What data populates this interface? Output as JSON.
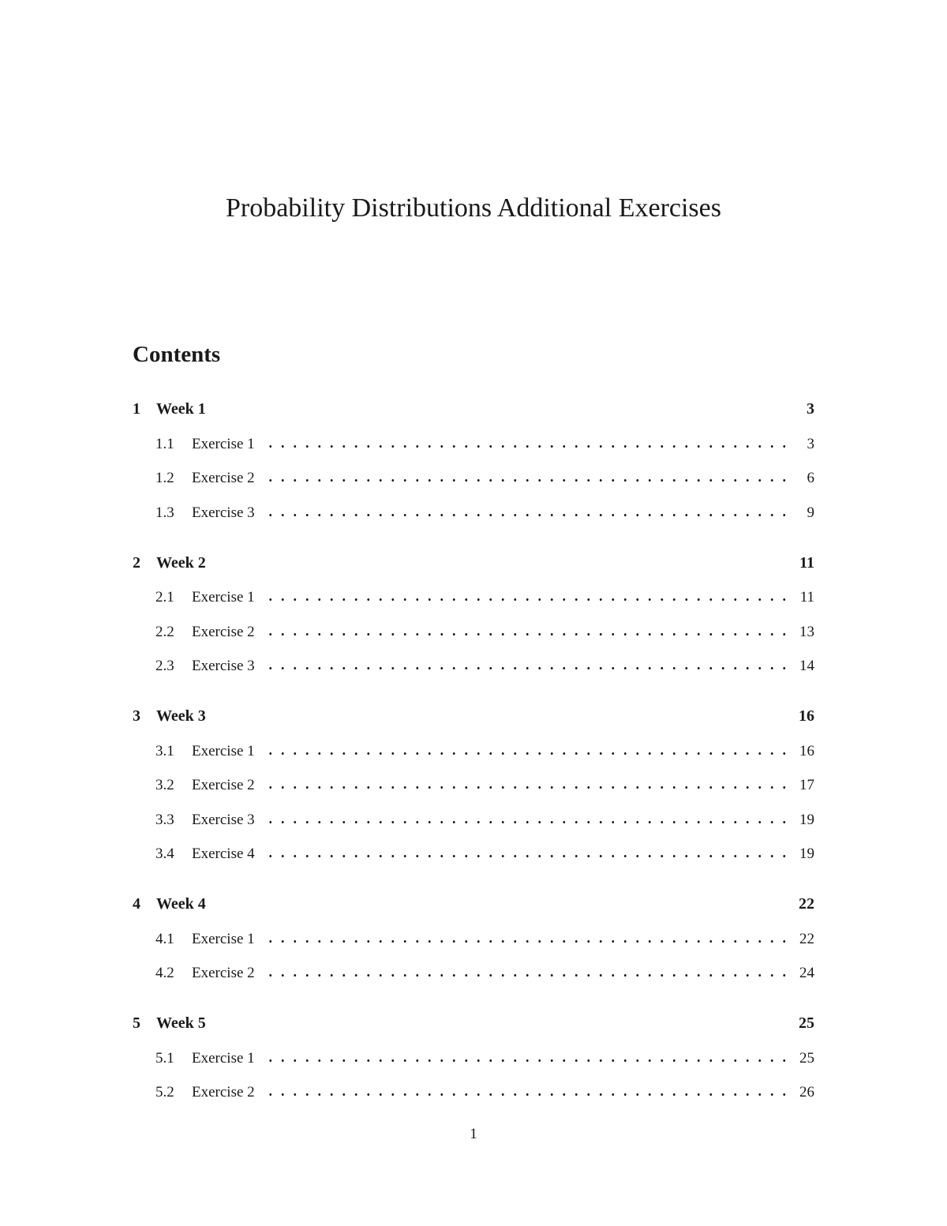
{
  "document": {
    "title": "Probability Distributions Additional Exercises",
    "page_number": "1"
  },
  "contents": {
    "heading": "Contents",
    "sections": [
      {
        "number": "1",
        "label": "Week 1",
        "page": "3",
        "entries": [
          {
            "number": "1.1",
            "label": "Exercise 1",
            "page": "3"
          },
          {
            "number": "1.2",
            "label": "Exercise 2",
            "page": "6"
          },
          {
            "number": "1.3",
            "label": "Exercise 3",
            "page": "9"
          }
        ]
      },
      {
        "number": "2",
        "label": "Week 2",
        "page": "11",
        "entries": [
          {
            "number": "2.1",
            "label": "Exercise 1",
            "page": "11"
          },
          {
            "number": "2.2",
            "label": "Exercise 2",
            "page": "13"
          },
          {
            "number": "2.3",
            "label": "Exercise 3",
            "page": "14"
          }
        ]
      },
      {
        "number": "3",
        "label": "Week 3",
        "page": "16",
        "entries": [
          {
            "number": "3.1",
            "label": "Exercise 1",
            "page": "16"
          },
          {
            "number": "3.2",
            "label": "Exercise 2",
            "page": "17"
          },
          {
            "number": "3.3",
            "label": "Exercise 3",
            "page": "19"
          },
          {
            "number": "3.4",
            "label": "Exercise 4",
            "page": "19"
          }
        ]
      },
      {
        "number": "4",
        "label": "Week 4",
        "page": "22",
        "entries": [
          {
            "number": "4.1",
            "label": "Exercise 1",
            "page": "22"
          },
          {
            "number": "4.2",
            "label": "Exercise 2",
            "page": "24"
          }
        ]
      },
      {
        "number": "5",
        "label": "Week 5",
        "page": "25",
        "entries": [
          {
            "number": "5.1",
            "label": "Exercise 1",
            "page": "25"
          },
          {
            "number": "5.2",
            "label": "Exercise 2",
            "page": "26"
          }
        ]
      }
    ]
  }
}
